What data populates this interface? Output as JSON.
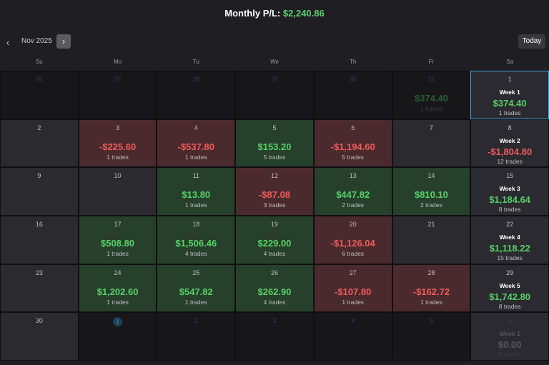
{
  "header": {
    "title_label": "Monthly P/L:",
    "title_value": "$2,240.86"
  },
  "nav": {
    "prev": "‹",
    "month": "Nov 2025",
    "next": "›",
    "today": "Today"
  },
  "weekdays": [
    "Su",
    "Mo",
    "Tu",
    "We",
    "Th",
    "Fr",
    "Sa"
  ],
  "weeks": [
    [
      {
        "day": "26",
        "out": true
      },
      {
        "day": "27",
        "out": true
      },
      {
        "day": "28",
        "out": true
      },
      {
        "day": "29",
        "out": true
      },
      {
        "day": "30",
        "out": true
      },
      {
        "day": "31",
        "out": true,
        "pl": "$374.40",
        "trades": "1 trades",
        "tone": "green"
      },
      {
        "day": "1",
        "sat": true,
        "selected": true,
        "week": "Week 1",
        "pl": "$374.40",
        "trades": "1 trades",
        "tone": "green"
      }
    ],
    [
      {
        "day": "2"
      },
      {
        "day": "3",
        "pl": "-$225.60",
        "trades": "1 trades",
        "tone": "red"
      },
      {
        "day": "4",
        "pl": "-$537.80",
        "trades": "1 trades",
        "tone": "red"
      },
      {
        "day": "5",
        "pl": "$153.20",
        "trades": "5 trades",
        "tone": "green"
      },
      {
        "day": "6",
        "pl": "-$1,194.60",
        "trades": "5 trades",
        "tone": "red"
      },
      {
        "day": "7"
      },
      {
        "day": "8",
        "sat": true,
        "week": "Week 2",
        "pl": "-$1,804.80",
        "trades": "12 trades",
        "tone": "red"
      }
    ],
    [
      {
        "day": "9"
      },
      {
        "day": "10"
      },
      {
        "day": "11",
        "pl": "$13.80",
        "trades": "1 trades",
        "tone": "green"
      },
      {
        "day": "12",
        "pl": "-$87.08",
        "trades": "3 trades",
        "tone": "red"
      },
      {
        "day": "13",
        "pl": "$447.82",
        "trades": "2 trades",
        "tone": "green"
      },
      {
        "day": "14",
        "pl": "$810.10",
        "trades": "2 trades",
        "tone": "green"
      },
      {
        "day": "15",
        "sat": true,
        "week": "Week 3",
        "pl": "$1,184.64",
        "trades": "8 trades",
        "tone": "green"
      }
    ],
    [
      {
        "day": "16"
      },
      {
        "day": "17",
        "pl": "$508.80",
        "trades": "1 trades",
        "tone": "green"
      },
      {
        "day": "18",
        "pl": "$1,506.46",
        "trades": "4 trades",
        "tone": "green"
      },
      {
        "day": "19",
        "pl": "$229.00",
        "trades": "4 trades",
        "tone": "green"
      },
      {
        "day": "20",
        "pl": "-$1,126.04",
        "trades": "6 trades",
        "tone": "red"
      },
      {
        "day": "21"
      },
      {
        "day": "22",
        "sat": true,
        "week": "Week 4",
        "pl": "$1,118.22",
        "trades": "15 trades",
        "tone": "green"
      }
    ],
    [
      {
        "day": "23"
      },
      {
        "day": "24",
        "pl": "$1,202.60",
        "trades": "1 trades",
        "tone": "green"
      },
      {
        "day": "25",
        "pl": "$547.82",
        "trades": "1 trades",
        "tone": "green"
      },
      {
        "day": "26",
        "pl": "$262.90",
        "trades": "4 trades",
        "tone": "green"
      },
      {
        "day": "27",
        "pl": "-$107.80",
        "trades": "1 trades",
        "tone": "red"
      },
      {
        "day": "28",
        "pl": "-$162.72",
        "trades": "1 trades",
        "tone": "red"
      },
      {
        "day": "29",
        "sat": true,
        "week": "Week 5",
        "pl": "$1,742.80",
        "trades": "8 trades",
        "tone": "green"
      }
    ],
    [
      {
        "day": "30"
      },
      {
        "day": "1",
        "out": true,
        "today": true
      },
      {
        "day": "2",
        "out": true
      },
      {
        "day": "3",
        "out": true
      },
      {
        "day": "4",
        "out": true
      },
      {
        "day": "5",
        "out": true
      },
      {
        "day": "6",
        "out": true,
        "sat": true,
        "week": "Week 1",
        "pl": "$0.00",
        "trades": "0 trades",
        "tone": "gray"
      }
    ]
  ]
}
